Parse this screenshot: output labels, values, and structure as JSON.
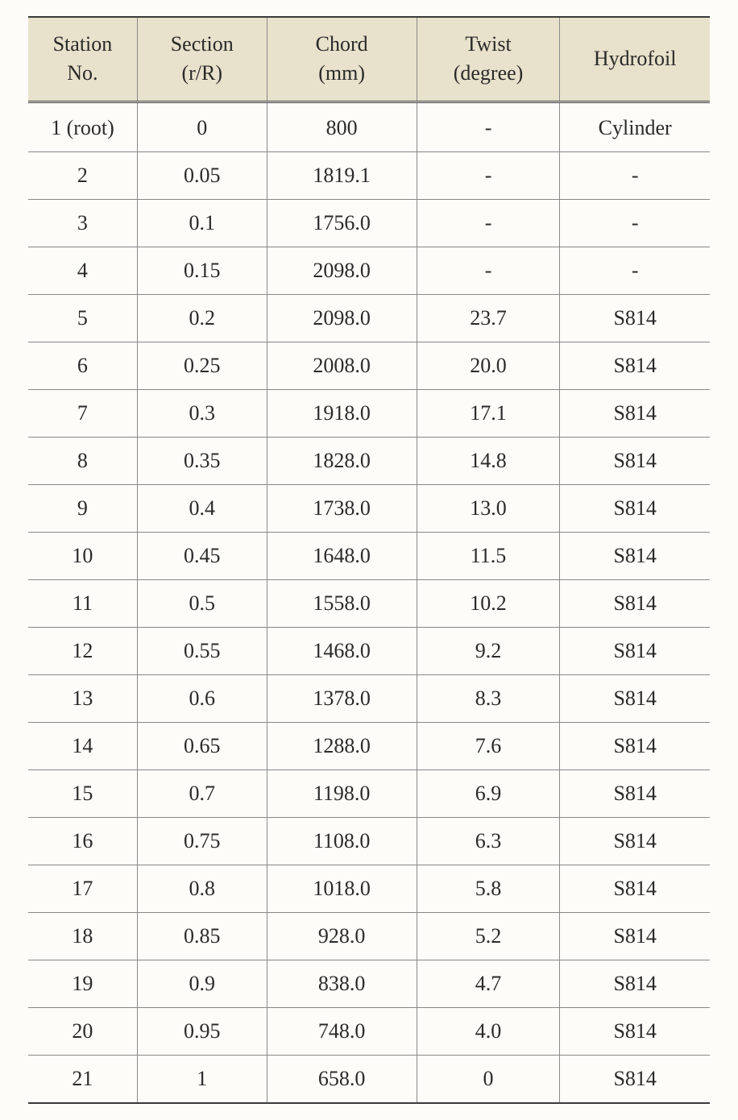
{
  "table": {
    "background_header": "#e8e1cb",
    "border_color_heavy": "#3a3a3a",
    "border_color_light": "#888888",
    "font_family": "Times New Roman",
    "font_size": 26,
    "columns": [
      {
        "line1": "Station",
        "line2": "No."
      },
      {
        "line1": "Section",
        "line2": "(r/R)"
      },
      {
        "line1": "Chord",
        "line2": "(mm)"
      },
      {
        "line1": "Twist",
        "line2": "(degree)"
      },
      {
        "line1": "Hydrofoil",
        "line2": ""
      }
    ],
    "rows": [
      {
        "station": "1 (root)",
        "section": "0",
        "chord": "800",
        "twist": "-",
        "hydrofoil": "Cylinder"
      },
      {
        "station": "2",
        "section": "0.05",
        "chord": "1819.1",
        "twist": "-",
        "hydrofoil": "-"
      },
      {
        "station": "3",
        "section": "0.1",
        "chord": "1756.0",
        "twist": "-",
        "hydrofoil": "-"
      },
      {
        "station": "4",
        "section": "0.15",
        "chord": "2098.0",
        "twist": "-",
        "hydrofoil": "-"
      },
      {
        "station": "5",
        "section": "0.2",
        "chord": "2098.0",
        "twist": "23.7",
        "hydrofoil": "S814"
      },
      {
        "station": "6",
        "section": "0.25",
        "chord": "2008.0",
        "twist": "20.0",
        "hydrofoil": "S814"
      },
      {
        "station": "7",
        "section": "0.3",
        "chord": "1918.0",
        "twist": "17.1",
        "hydrofoil": "S814"
      },
      {
        "station": "8",
        "section": "0.35",
        "chord": "1828.0",
        "twist": "14.8",
        "hydrofoil": "S814"
      },
      {
        "station": "9",
        "section": "0.4",
        "chord": "1738.0",
        "twist": "13.0",
        "hydrofoil": "S814"
      },
      {
        "station": "10",
        "section": "0.45",
        "chord": "1648.0",
        "twist": "11.5",
        "hydrofoil": "S814"
      },
      {
        "station": "11",
        "section": "0.5",
        "chord": "1558.0",
        "twist": "10.2",
        "hydrofoil": "S814"
      },
      {
        "station": "12",
        "section": "0.55",
        "chord": "1468.0",
        "twist": "9.2",
        "hydrofoil": "S814"
      },
      {
        "station": "13",
        "section": "0.6",
        "chord": "1378.0",
        "twist": "8.3",
        "hydrofoil": "S814"
      },
      {
        "station": "14",
        "section": "0.65",
        "chord": "1288.0",
        "twist": "7.6",
        "hydrofoil": "S814"
      },
      {
        "station": "15",
        "section": "0.7",
        "chord": "1198.0",
        "twist": "6.9",
        "hydrofoil": "S814"
      },
      {
        "station": "16",
        "section": "0.75",
        "chord": "1108.0",
        "twist": "6.3",
        "hydrofoil": "S814"
      },
      {
        "station": "17",
        "section": "0.8",
        "chord": "1018.0",
        "twist": "5.8",
        "hydrofoil": "S814"
      },
      {
        "station": "18",
        "section": "0.85",
        "chord": "928.0",
        "twist": "5.2",
        "hydrofoil": "S814"
      },
      {
        "station": "19",
        "section": "0.9",
        "chord": "838.0",
        "twist": "4.7",
        "hydrofoil": "S814"
      },
      {
        "station": "20",
        "section": "0.95",
        "chord": "748.0",
        "twist": "4.0",
        "hydrofoil": "S814"
      },
      {
        "station": "21",
        "section": "1",
        "chord": "658.0",
        "twist": "0",
        "hydrofoil": "S814"
      }
    ]
  }
}
